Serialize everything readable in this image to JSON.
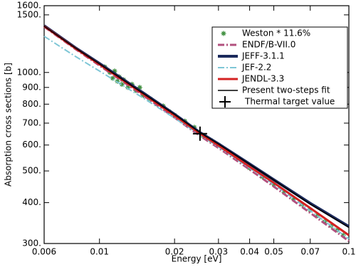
{
  "chart_data": {
    "type": "line",
    "xlabel": "Energy [eV]",
    "ylabel": "Absorption cross sections [b]",
    "xscale": "log",
    "yscale": "log",
    "xlim": [
      0.006,
      0.1
    ],
    "xticks": [
      0.006,
      0.01,
      0.02,
      0.03,
      0.04,
      0.05,
      0.07,
      0.1
    ],
    "ylim": [
      300,
      1600
    ],
    "yticks": [
      {
        "value": 300,
        "label": "300."
      },
      {
        "value": 400,
        "label": "400."
      },
      {
        "value": 500,
        "label": "500."
      },
      {
        "value": 600,
        "label": "600."
      },
      {
        "value": 700,
        "label": "700."
      },
      {
        "value": 800,
        "label": "800."
      },
      {
        "value": 900,
        "label": "900."
      },
      {
        "value": 1000,
        "label": "1000."
      },
      {
        "value": 1500,
        "label": "1500."
      },
      {
        "value": 1600,
        "label": "1600."
      }
    ],
    "legend": "upper right",
    "series": [
      {
        "name": "Weston * 11.6%",
        "color": "#3f8f3f",
        "marker": "star",
        "x": [
          0.0105,
          0.011,
          0.0113,
          0.0115,
          0.0118,
          0.012,
          0.0123,
          0.0125,
          0.013,
          0.0135,
          0.014,
          0.0145,
          0.015,
          0.016,
          0.017,
          0.018,
          0.019,
          0.02,
          0.022,
          0.024,
          0.026,
          0.028,
          0.03,
          0.033,
          0.036,
          0.04,
          0.045,
          0.05,
          0.055,
          0.06,
          0.065,
          0.07,
          0.075,
          0.08,
          0.085,
          0.09,
          0.095
        ],
        "values": [
          1040,
          1000,
          960,
          1010,
          940,
          970,
          920,
          950,
          900,
          920,
          880,
          900,
          850,
          830,
          800,
          790,
          760,
          740,
          710,
          680,
          640,
          620,
          600,
          570,
          545,
          510,
          480,
          455,
          430,
          410,
          395,
          380,
          365,
          350,
          340,
          330,
          318
        ]
      },
      {
        "name": "ENDF/B-VII.0",
        "color": "#b2507e",
        "style": "dash-dot",
        "width": 3,
        "x": [
          0.006,
          0.008,
          0.01,
          0.015,
          0.02,
          0.0253,
          0.03,
          0.04,
          0.05,
          0.07,
          0.1
        ],
        "values": [
          1380,
          1180,
          1050,
          850,
          728,
          640,
          588,
          505,
          448,
          372,
          305
        ]
      },
      {
        "name": "JEFF-3.1.1",
        "color": "#1b2a5c",
        "style": "solid",
        "width": 4,
        "x": [
          0.006,
          0.008,
          0.01,
          0.015,
          0.02,
          0.0253,
          0.03,
          0.04,
          0.05,
          0.07,
          0.1
        ],
        "values": [
          1390,
          1190,
          1065,
          865,
          745,
          655,
          605,
          525,
          470,
          398,
          338
        ]
      },
      {
        "name": "JEF-2.2",
        "color": "#7ec6d6",
        "style": "dash-dot",
        "width": 2,
        "x": [
          0.006,
          0.008,
          0.01,
          0.015,
          0.02,
          0.0253,
          0.03,
          0.04,
          0.05,
          0.07,
          0.1
        ],
        "values": [
          1290,
          1120,
          1010,
          835,
          725,
          645,
          592,
          510,
          455,
          378,
          310
        ]
      },
      {
        "name": "JENDL-3.3",
        "color": "#d42222",
        "style": "solid",
        "width": 3,
        "x": [
          0.006,
          0.008,
          0.01,
          0.015,
          0.02,
          0.0253,
          0.03,
          0.04,
          0.05,
          0.07,
          0.1
        ],
        "values": [
          1385,
          1185,
          1058,
          858,
          738,
          650,
          598,
          515,
          460,
          385,
          318
        ]
      },
      {
        "name": "Present two-steps fit",
        "color": "#000000",
        "style": "solid",
        "width": 1.5,
        "x": [
          0.006,
          0.008,
          0.01,
          0.015,
          0.02,
          0.0253,
          0.03,
          0.04,
          0.05,
          0.07,
          0.1
        ],
        "values": [
          1385,
          1188,
          1062,
          862,
          744,
          655,
          604,
          524,
          469,
          396,
          336
        ]
      },
      {
        "name": "Thermal target value",
        "color": "#000000",
        "marker": "plus",
        "x": [
          0.0253
        ],
        "values": [
          650
        ]
      }
    ]
  }
}
